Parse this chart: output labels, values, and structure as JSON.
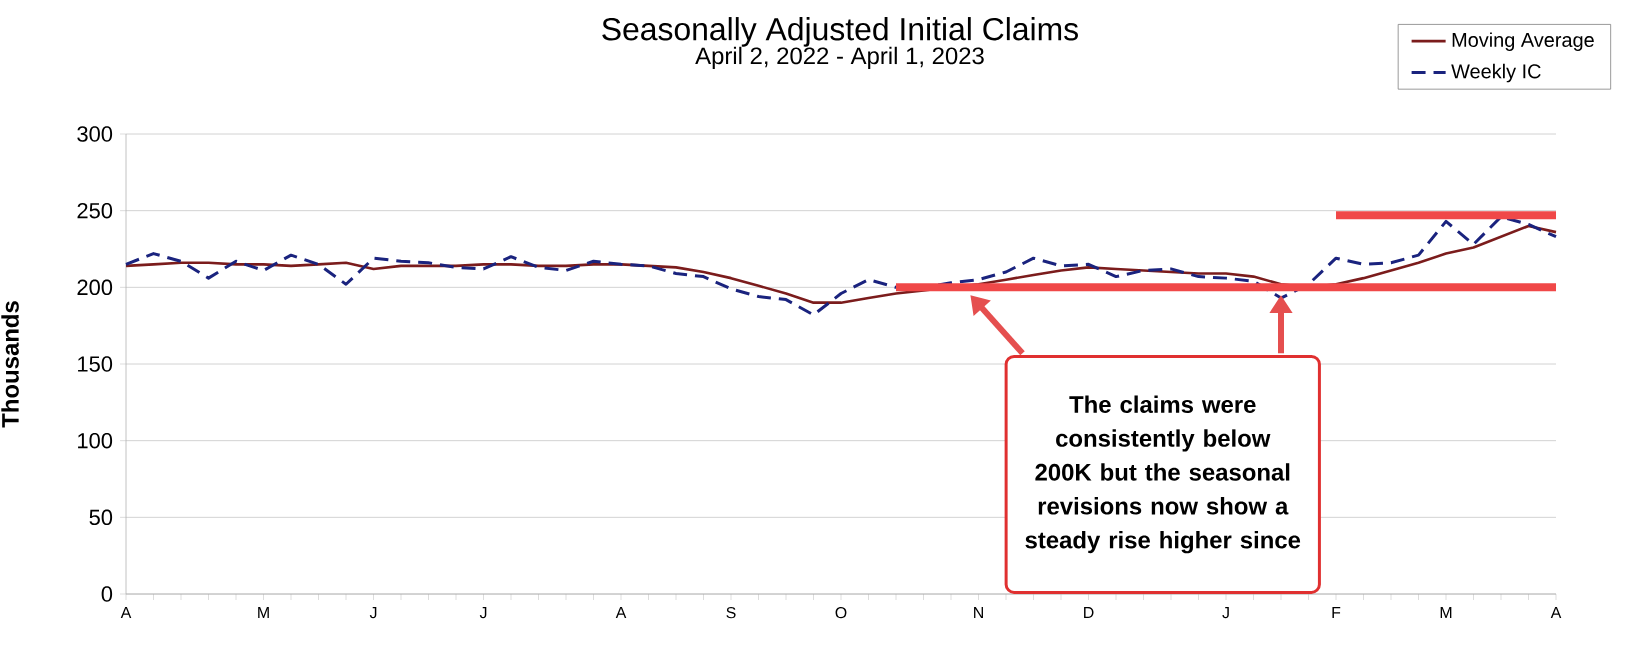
{
  "chart_data": {
    "type": "line",
    "title": "Seasonally Adjusted Initial Claims",
    "subtitle": "April 2, 2022 - April 1, 2023",
    "ylabel": "Thousands",
    "categories": [
      "A",
      null,
      null,
      null,
      null,
      "M",
      null,
      null,
      null,
      "J",
      null,
      null,
      null,
      "J",
      null,
      null,
      null,
      null,
      "A",
      null,
      null,
      null,
      "S",
      null,
      null,
      null,
      "O",
      null,
      null,
      null,
      null,
      "N",
      null,
      null,
      null,
      "D",
      null,
      null,
      null,
      null,
      "J",
      null,
      null,
      null,
      "F",
      null,
      null,
      null,
      "M",
      null,
      null,
      null,
      "A"
    ],
    "ylim": [
      0,
      300
    ],
    "yticks": [
      0,
      50,
      100,
      150,
      200,
      250,
      300
    ],
    "grid": "y",
    "legend": "top right",
    "series": [
      {
        "name": "Moving Average",
        "color": "#7b1c1c",
        "line_style": "solid",
        "values": [
          214,
          215,
          216,
          216,
          215,
          215,
          214,
          215,
          216,
          212,
          214,
          214,
          214,
          215,
          215,
          214,
          214,
          215,
          215,
          214,
          213,
          210,
          206,
          201,
          196,
          190,
          190,
          193,
          196,
          198,
          200,
          202,
          205,
          208,
          211,
          213,
          212,
          211,
          210,
          209,
          209,
          207,
          202,
          200,
          202,
          206,
          211,
          216,
          222,
          226,
          233,
          240,
          236
        ]
      },
      {
        "name": "Weekly IC",
        "color": "#1a237e",
        "line_style": "dashed",
        "values": [
          215,
          222,
          217,
          206,
          217,
          211,
          221,
          215,
          202,
          219,
          217,
          216,
          213,
          212,
          220,
          213,
          211,
          217,
          215,
          214,
          209,
          207,
          199,
          194,
          192,
          182,
          196,
          205,
          200,
          200,
          203,
          205,
          210,
          219,
          214,
          215,
          207,
          211,
          212,
          207,
          206,
          204,
          193,
          202,
          219,
          215,
          216,
          221,
          243,
          228,
          246,
          241,
          233
        ]
      },
      {
        "color": "#f04848",
        "line_style": "solid",
        "values": [
          null,
          null,
          null,
          null,
          null,
          null,
          null,
          null,
          null,
          null,
          null,
          null,
          null,
          null,
          null,
          null,
          null,
          null,
          null,
          null,
          null,
          null,
          null,
          null,
          null,
          null,
          null,
          null,
          200,
          200,
          200,
          200,
          200,
          200,
          200,
          200,
          200,
          200,
          200,
          200,
          200,
          200,
          200,
          200,
          200,
          200,
          200,
          200,
          200,
          200,
          200,
          200,
          200
        ]
      },
      {
        "color": "#f04848",
        "line_style": "solid",
        "values": [
          null,
          null,
          null,
          null,
          null,
          null,
          null,
          null,
          null,
          null,
          null,
          null,
          null,
          null,
          null,
          null,
          null,
          null,
          null,
          null,
          null,
          null,
          null,
          null,
          null,
          null,
          null,
          null,
          null,
          null,
          null,
          null,
          null,
          null,
          null,
          null,
          null,
          null,
          null,
          null,
          null,
          null,
          null,
          null,
          247,
          247,
          247,
          247,
          247,
          247,
          247,
          247,
          247
        ]
      }
    ],
    "annotations": [
      "The claims were consistently below 200K but the seasonal revisions now show a steady rise higher since"
    ]
  }
}
